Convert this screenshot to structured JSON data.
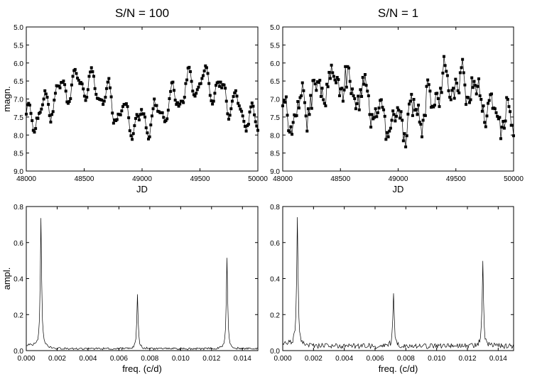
{
  "chart_data": [
    {
      "id": "lc_high",
      "type": "line",
      "title": "S/N = 100",
      "xlabel": "JD",
      "ylabel": "magn.",
      "xlim": [
        48000,
        50000
      ],
      "ylim": [
        9.0,
        5.0
      ],
      "y_inverted": true,
      "xticks": [
        "48000",
        "48500",
        "49000",
        "49500",
        "50000"
      ],
      "yticks": [
        "5.0",
        "5.5",
        "6.0",
        "6.5",
        "7.0",
        "7.5",
        "8.0",
        "8.5",
        "9.0"
      ],
      "marker": "square",
      "series": [
        {
          "name": "S/N = 100",
          "x": [],
          "y": []
        }
      ]
    },
    {
      "id": "lc_low",
      "type": "line",
      "title": "S/N = 1",
      "xlabel": "JD",
      "ylabel": "",
      "xlim": [
        48000,
        50000
      ],
      "ylim": [
        9.0,
        5.0
      ],
      "y_inverted": true,
      "xticks": [
        "48000",
        "48500",
        "49000",
        "49500",
        "50000"
      ],
      "yticks": [
        "5.0",
        "5.5",
        "6.0",
        "6.5",
        "7.0",
        "7.5",
        "8.0",
        "8.5",
        "9.0"
      ],
      "marker": "square",
      "series": [
        {
          "name": "S/N = 1",
          "x": [],
          "y": []
        }
      ]
    },
    {
      "id": "ps_high",
      "type": "line",
      "title": "",
      "xlabel": "freq. (c/d)",
      "ylabel": "ampl.",
      "xlim": [
        0.0,
        0.015
      ],
      "ylim": [
        0.0,
        0.8
      ],
      "xticks": [
        "0.000",
        "0.002",
        "0.004",
        "0.006",
        "0.008",
        "0.010",
        "0.012",
        "0.014"
      ],
      "yticks": [
        "0.0",
        "0.2",
        "0.4",
        "0.6",
        "0.8"
      ],
      "peaks": [
        {
          "freq": 0.00095,
          "ampl": 0.7
        },
        {
          "freq": 0.0072,
          "ampl": 0.3
        },
        {
          "freq": 0.013,
          "ampl": 0.5
        }
      ],
      "noise_level": 0.01,
      "series": [
        {
          "name": "spectrum",
          "x": [],
          "y": []
        }
      ]
    },
    {
      "id": "ps_low",
      "type": "line",
      "title": "",
      "xlabel": "freq. (c/d)",
      "ylabel": "",
      "xlim": [
        0.0,
        0.015
      ],
      "ylim": [
        0.0,
        0.8
      ],
      "xticks": [
        "0.000",
        "0.002",
        "0.004",
        "0.006",
        "0.008",
        "0.010",
        "0.012",
        "0.014"
      ],
      "yticks": [
        "0.0",
        "0.2",
        "0.4",
        "0.6",
        "0.8"
      ],
      "peaks": [
        {
          "freq": 0.00095,
          "ampl": 0.69
        },
        {
          "freq": 0.0072,
          "ampl": 0.29
        },
        {
          "freq": 0.013,
          "ampl": 0.48
        }
      ],
      "noise_level": 0.025,
      "series": [
        {
          "name": "spectrum",
          "x": [],
          "y": []
        }
      ]
    }
  ]
}
